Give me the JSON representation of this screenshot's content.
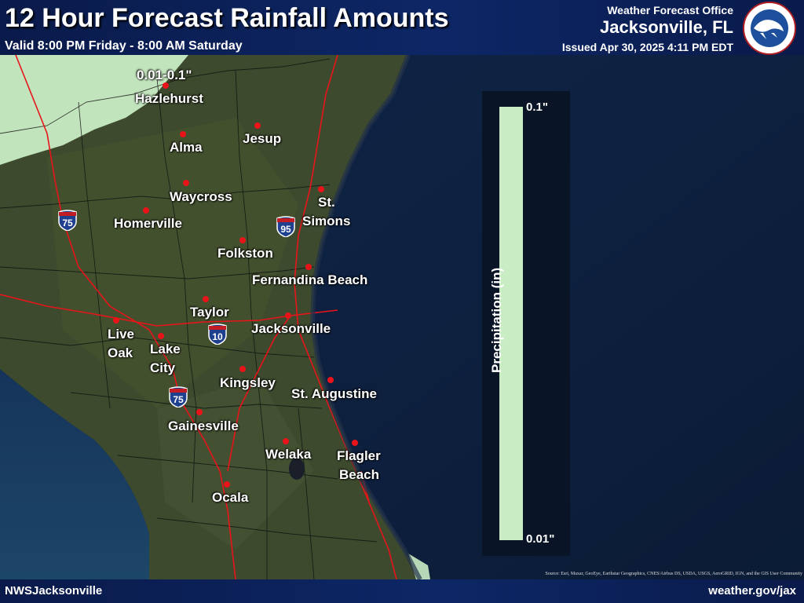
{
  "header": {
    "title": "12 Hour Forecast Rainfall Amounts",
    "valid": "Valid 8:00 PM Friday - 8:00 AM Saturday",
    "office_label": "Weather Forecast Office",
    "office_name": "Jacksonville, FL",
    "issued": "Issued Apr 30, 2025 4:11 PM EDT",
    "logo_icon": "nws-logo-icon"
  },
  "footer": {
    "left": "NWSJacksonville",
    "right": "weather.gov/jax",
    "source": "Source: Esri, Maxar, GeoEye, Earthstar Geographics, CNES/Airbus DS, USDA, USGS, AeroGRID, IGN, and the GIS User Community"
  },
  "rain_label": "0.01-0.1\"",
  "cities": {
    "hazlehurst": "Hazlehurst",
    "alma": "Alma",
    "jesup": "Jesup",
    "waycross": "Waycross",
    "st_simons_1": "St.",
    "st_simons_2": "Simons",
    "homerville": "Homerville",
    "folkston": "Folkston",
    "fernandina": "Fernandina Beach",
    "taylor": "Taylor",
    "jacksonville": "Jacksonville",
    "live_oak_1": "Live",
    "live_oak_2": "Oak",
    "lake_city_1": "Lake",
    "lake_city_2": "City",
    "kingsley": "Kingsley",
    "st_augustine": "St. Augustine",
    "gainesville": "Gainesville",
    "welaka": "Welaka",
    "flagler_1": "Flagler",
    "flagler_2": "Beach",
    "ocala": "Ocala"
  },
  "interstates": {
    "i75": "75",
    "i95": "95",
    "i10": "10"
  },
  "legend": {
    "top_label": "0.1\"",
    "bottom_label": "0.01\"",
    "axis_label": "Precipitation (in)",
    "bar_color": "#c9ecc4"
  },
  "colors": {
    "city_dot": "#e8141a",
    "roads": "#e8141a",
    "rain_fill": "#c9ecc4",
    "ocean": "#0f2240",
    "land": "#3a4a2c"
  }
}
